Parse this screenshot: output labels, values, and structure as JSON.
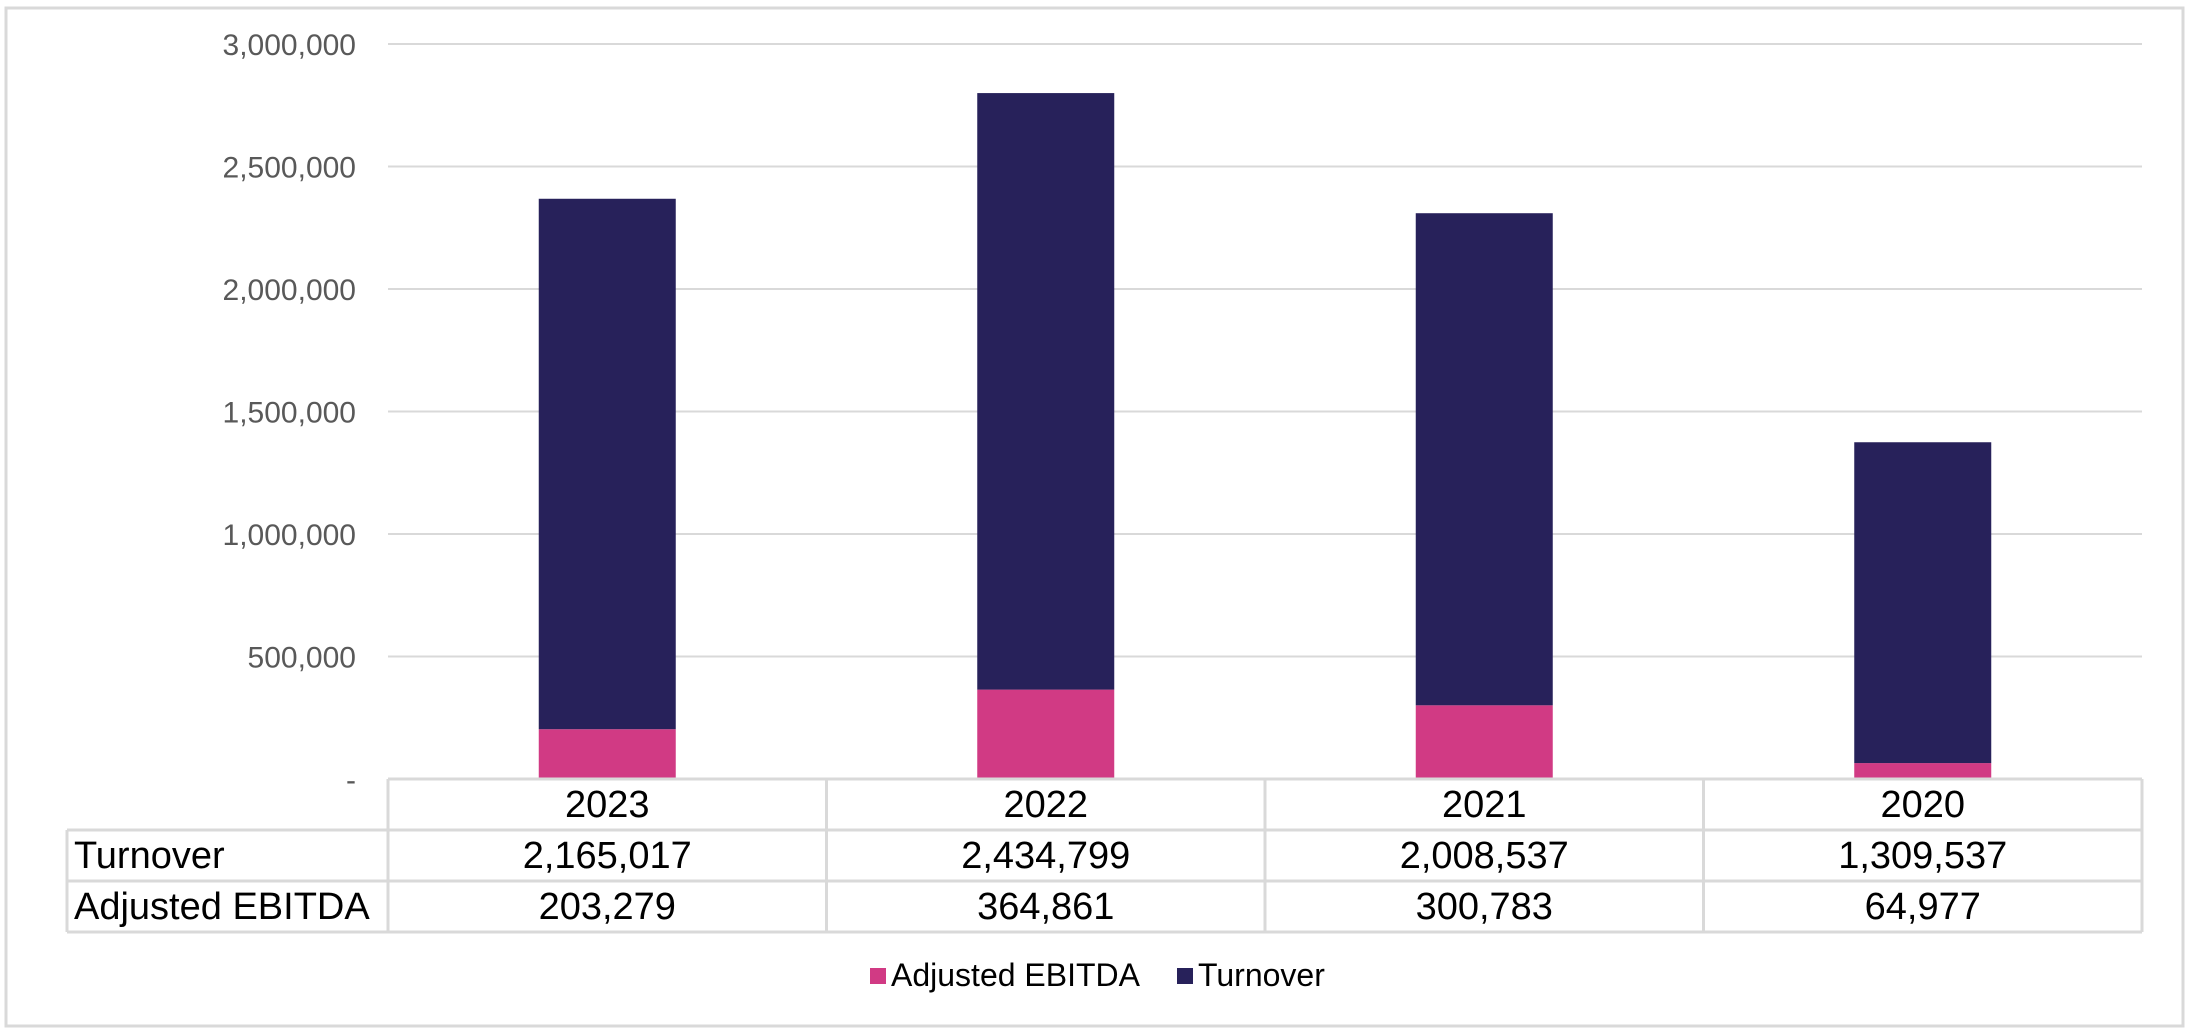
{
  "chart_data": {
    "type": "bar",
    "stacked": true,
    "categories": [
      "2023",
      "2022",
      "2021",
      "2020"
    ],
    "series": [
      {
        "name": "Adjusted EBITDA",
        "values": [
          203279,
          364861,
          300783,
          64977
        ],
        "color": "#D13A84"
      },
      {
        "name": "Turnover",
        "values": [
          2165017,
          2434799,
          2008537,
          1309537
        ],
        "color": "#27215A"
      }
    ],
    "y_ticks": [
      "3,000,000",
      "2,500,000",
      "2,000,000",
      "1,500,000",
      "1,000,000",
      "500,000",
      "-"
    ],
    "y_tick_values": [
      3000000,
      2500000,
      2000000,
      1500000,
      1000000,
      500000,
      0
    ],
    "ylim": [
      0,
      3000000
    ],
    "grid": true,
    "legend_position": "bottom",
    "data_table": {
      "rows": [
        {
          "label": "Turnover",
          "values": [
            "2,165,017",
            "2,434,799",
            "2,008,537",
            "1,309,537"
          ]
        },
        {
          "label": "Adjusted EBITDA",
          "values": [
            "203,279",
            "364,861",
            "300,783",
            "64,977"
          ]
        }
      ]
    }
  }
}
